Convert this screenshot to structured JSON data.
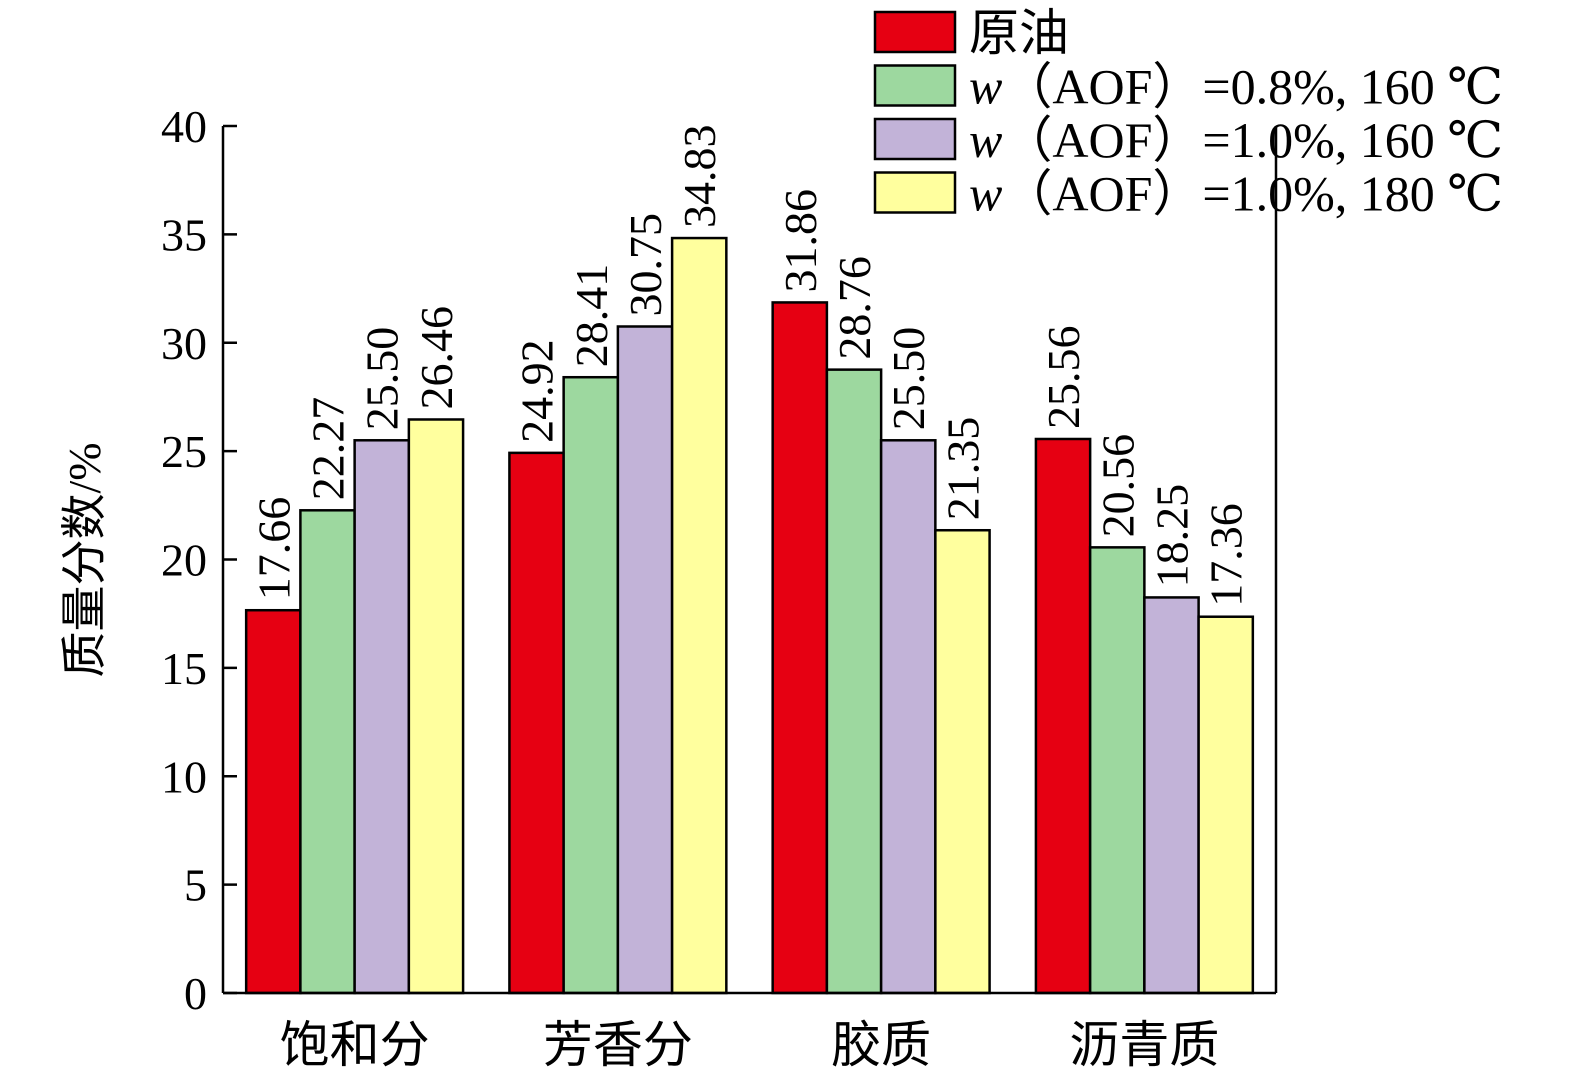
{
  "chart_data": {
    "type": "bar",
    "title": "",
    "xlabel": "",
    "ylabel": "质量分数/%",
    "ylim": [
      0,
      40
    ],
    "yticks": [
      0,
      5,
      10,
      15,
      20,
      25,
      30,
      35,
      40
    ],
    "grid": false,
    "legend_position": "top-right",
    "categories": [
      "饱和分",
      "芳香分",
      "胶质",
      "沥青质"
    ],
    "series": [
      {
        "name": "原油",
        "legend_parts": [
          "",
          "原油"
        ],
        "color": "#e60012",
        "values": [
          17.66,
          24.92,
          31.86,
          25.56
        ],
        "labels": [
          "17.66",
          "24.92",
          "31.86",
          "25.56"
        ]
      },
      {
        "name": "w（AOF）=0.8%, 160 ℃",
        "legend_parts": [
          "w",
          "（AOF）=0.8%, 160 ℃"
        ],
        "color": "#9dd89f",
        "values": [
          22.27,
          28.41,
          28.76,
          20.56
        ],
        "labels": [
          "22.27",
          "28.41",
          "28.76",
          "20.56"
        ]
      },
      {
        "name": "w（AOF）=1.0%, 160 ℃",
        "legend_parts": [
          "w",
          "（AOF）=1.0%, 160 ℃"
        ],
        "color": "#c2b3d8",
        "values": [
          25.5,
          30.75,
          25.5,
          18.25
        ],
        "labels": [
          "25.50",
          "30.75",
          "25.50",
          "18.25"
        ]
      },
      {
        "name": "w（AOF）=1.0%, 180 ℃",
        "legend_parts": [
          "w",
          "（AOF）=1.0%, 180 ℃"
        ],
        "color": "#ffff9e",
        "values": [
          26.46,
          34.83,
          21.35,
          17.36
        ],
        "labels": [
          "26.46",
          "34.83",
          "21.35",
          "17.36"
        ]
      }
    ]
  }
}
